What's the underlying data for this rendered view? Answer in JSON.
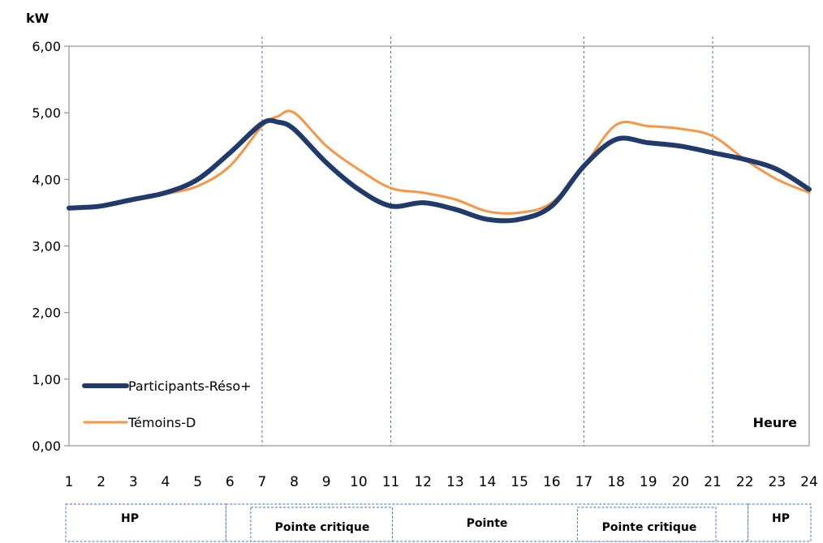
{
  "chart_data": {
    "type": "line",
    "ylabel": "kW",
    "xlabel": "Heure",
    "ylim": [
      0,
      6
    ],
    "yticks": [
      0,
      1,
      2,
      3,
      4,
      5,
      6
    ],
    "ytick_labels": [
      "0,00",
      "1,00",
      "2,00",
      "3,00",
      "4,00",
      "5,00",
      "6,00"
    ],
    "xlim": [
      1,
      24
    ],
    "xtick_labels": [
      "1",
      "2",
      "3",
      "4",
      "5",
      "6",
      "7",
      "8",
      "9",
      "10",
      "11",
      "12",
      "13",
      "14",
      "15",
      "16",
      "17",
      "18",
      "19",
      "20",
      "21",
      "22",
      "23",
      "24"
    ],
    "grid": false,
    "legend": "bottom-left",
    "vlines": [
      7,
      11,
      17,
      21
    ],
    "series": [
      {
        "name": "Participants-Réso+",
        "color": "#1F3A6B",
        "x": [
          1,
          1.5,
          2,
          3,
          4,
          5,
          6,
          7,
          7.5,
          8,
          9,
          10,
          11,
          12,
          13,
          14,
          15,
          16,
          17,
          18,
          19,
          20,
          21,
          22,
          23,
          24
        ],
        "y": [
          3.57,
          3.58,
          3.6,
          3.7,
          3.8,
          4.0,
          4.4,
          4.84,
          4.86,
          4.75,
          4.25,
          3.85,
          3.6,
          3.65,
          3.55,
          3.4,
          3.4,
          3.6,
          4.2,
          4.6,
          4.55,
          4.5,
          4.4,
          4.3,
          4.15,
          3.85
        ]
      },
      {
        "name": "Témoins-D",
        "color": "#F79646",
        "x": [
          1,
          1.5,
          2,
          3,
          4,
          5,
          6,
          7,
          7.5,
          8,
          9,
          10,
          11,
          12,
          13,
          14,
          15,
          16,
          17,
          18,
          19,
          20,
          21,
          22,
          23,
          24
        ],
        "y": [
          3.56,
          3.57,
          3.6,
          3.68,
          3.78,
          3.9,
          4.2,
          4.8,
          4.95,
          5.0,
          4.5,
          4.15,
          3.87,
          3.8,
          3.7,
          3.52,
          3.5,
          3.65,
          4.2,
          4.82,
          4.8,
          4.76,
          4.65,
          4.3,
          4.0,
          3.8
        ]
      }
    ],
    "periods": [
      {
        "label": "HP",
        "from": 1,
        "to": 6
      },
      {
        "label": "Pointe critique",
        "from": 7,
        "to": 11
      },
      {
        "label": "Pointe",
        "from": 6,
        "to": 22
      },
      {
        "label": "Pointe critique",
        "from": 17,
        "to": 21
      },
      {
        "label": "HP",
        "from": 22,
        "to": 24
      }
    ]
  }
}
